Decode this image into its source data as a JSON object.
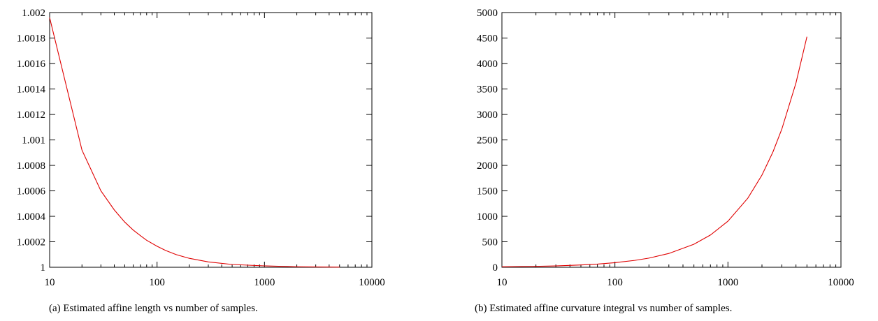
{
  "chart_data": [
    {
      "type": "line",
      "title": "",
      "xlabel": "",
      "ylabel": "",
      "xscale": "log",
      "xlim": [
        10,
        10000
      ],
      "ylim": [
        1,
        1.002
      ],
      "x_ticks": [
        10,
        100,
        1000,
        10000
      ],
      "x_tick_labels": [
        "10",
        "100",
        "1000",
        "10000"
      ],
      "y_ticks": [
        1,
        1.0002,
        1.0004,
        1.0006,
        1.0008,
        1.001,
        1.0012,
        1.0014,
        1.0016,
        1.0018,
        1.002
      ],
      "y_tick_labels": [
        "1",
        "1.0002",
        "1.0004",
        "1.0006",
        "1.0008",
        "1.001",
        "1.0012",
        "1.0014",
        "1.0016",
        "1.0018",
        "1.002"
      ],
      "grid": false,
      "legend": "none",
      "caption": "(a)  Estimated affine length vs number of samples.",
      "series": [
        {
          "color": "#e00000",
          "x": [
            10,
            20,
            30,
            40,
            50,
            60,
            70,
            80,
            100,
            120,
            150,
            200,
            300,
            500,
            1000,
            2000,
            5000
          ],
          "y": [
            1.00196,
            1.00092,
            1.0006,
            1.00045,
            1.000355,
            1.000292,
            1.000248,
            1.000212,
            1.000165,
            1.000132,
            1.0001,
            1.00007,
            1.000042,
            1.000022,
            1.000011,
            1.000004,
            1.000001
          ]
        }
      ]
    },
    {
      "type": "line",
      "title": "",
      "xlabel": "",
      "ylabel": "",
      "xscale": "log",
      "xlim": [
        10,
        10000
      ],
      "ylim": [
        0,
        5000
      ],
      "x_ticks": [
        10,
        100,
        1000,
        10000
      ],
      "x_tick_labels": [
        "10",
        "100",
        "1000",
        "10000"
      ],
      "y_ticks": [
        0,
        500,
        1000,
        1500,
        2000,
        2500,
        3000,
        3500,
        4000,
        4500,
        5000
      ],
      "y_tick_labels": [
        "0",
        "500",
        "1000",
        "1500",
        "2000",
        "2500",
        "3000",
        "3500",
        "4000",
        "4500",
        "5000"
      ],
      "grid": false,
      "legend": "none",
      "caption": "(b)  Estimated affine curvature integral vs number of samples.",
      "series": [
        {
          "color": "#e00000",
          "x": [
            10,
            20,
            30,
            50,
            70,
            100,
            150,
            200,
            300,
            500,
            700,
            1000,
            1500,
            2000,
            2500,
            3000,
            4000,
            5000
          ],
          "y": [
            9,
            18,
            27,
            45,
            63,
            90,
            135,
            180,
            271,
            452,
            633,
            905,
            1357,
            1810,
            2262,
            2714,
            3619,
            4525
          ]
        }
      ]
    }
  ]
}
